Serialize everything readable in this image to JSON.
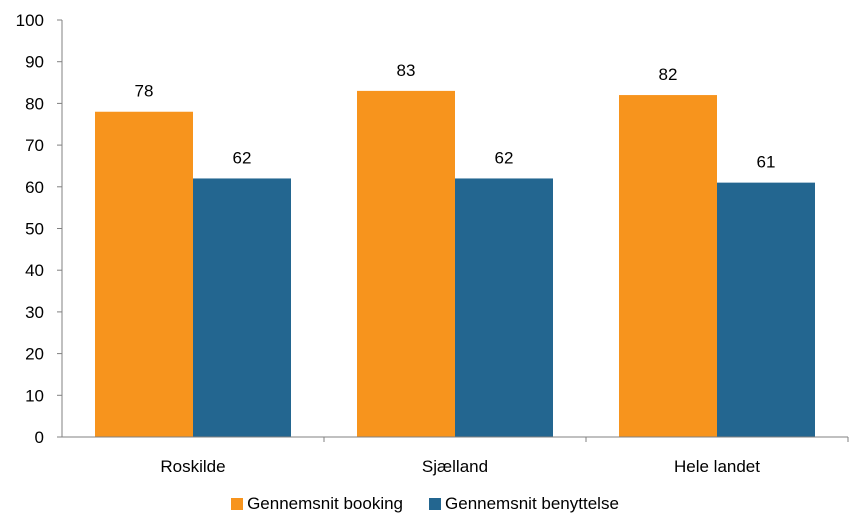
{
  "chart_data": {
    "type": "bar",
    "title": "",
    "xlabel": "",
    "ylabel": "",
    "categories": [
      "Roskilde",
      "Sjælland",
      "Hele landet"
    ],
    "series": [
      {
        "name": "Gennemsnit booking",
        "values": [
          78,
          83,
          82
        ],
        "color": "#F7941D"
      },
      {
        "name": "Gennemsnit benyttelse",
        "values": [
          62,
          62,
          61
        ],
        "color": "#236690"
      }
    ],
    "ylim": [
      0,
      100
    ],
    "yticks": [
      0,
      10,
      20,
      30,
      40,
      50,
      60,
      70,
      80,
      90,
      100
    ],
    "grid": false,
    "legend_position": "bottom-center"
  }
}
